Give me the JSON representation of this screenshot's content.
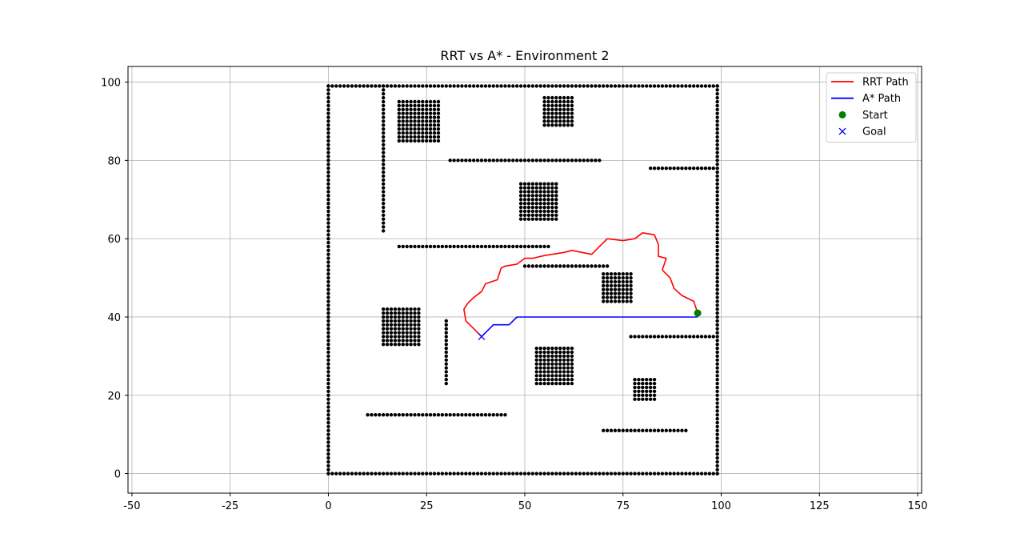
{
  "chart_data": {
    "type": "line",
    "title": "RRT vs A* - Environment 2",
    "xlabel": "",
    "ylabel": "",
    "xlim": [
      -51,
      151
    ],
    "ylim": [
      -5,
      104
    ],
    "grid": true,
    "legend_position": "top-right",
    "x_ticks": [
      -50,
      -25,
      0,
      25,
      50,
      75,
      100,
      125,
      150
    ],
    "y_ticks": [
      0,
      20,
      40,
      60,
      80,
      100
    ],
    "colors": {
      "rrt": "#ff0000",
      "astar": "#0000ff",
      "start": "#008000",
      "goal": "#0000ff",
      "obstacle": "#000000",
      "grid": "#b0b0b0"
    },
    "series": [
      {
        "name": "RRT Path",
        "kind": "line",
        "color": "#ff0000",
        "points": [
          [
            94,
            41
          ],
          [
            93,
            44
          ],
          [
            90,
            45.5
          ],
          [
            88,
            47.3
          ],
          [
            87,
            50
          ],
          [
            85,
            52
          ],
          [
            86,
            55
          ],
          [
            84,
            55.5
          ],
          [
            84,
            58.5
          ],
          [
            83,
            61
          ],
          [
            80,
            61.5
          ],
          [
            78,
            60
          ],
          [
            75,
            59.5
          ],
          [
            71,
            60
          ],
          [
            69,
            58
          ],
          [
            67,
            56
          ],
          [
            62,
            57
          ],
          [
            60,
            56.5
          ],
          [
            55,
            55.7
          ],
          [
            52,
            55
          ],
          [
            50,
            55
          ],
          [
            48,
            53.5
          ],
          [
            45,
            53
          ],
          [
            44,
            52.5
          ],
          [
            43,
            49.5
          ],
          [
            40,
            48.5
          ],
          [
            39,
            46.5
          ],
          [
            37,
            45
          ],
          [
            35.5,
            43.5
          ],
          [
            34.5,
            42
          ],
          [
            35,
            39
          ],
          [
            37,
            37
          ],
          [
            39,
            35
          ]
        ]
      },
      {
        "name": "A* Path",
        "kind": "line",
        "color": "#0000ff",
        "points": [
          [
            94,
            40
          ],
          [
            48,
            40
          ],
          [
            46,
            38
          ],
          [
            42,
            38
          ],
          [
            39,
            35
          ]
        ]
      },
      {
        "name": "Start",
        "kind": "point",
        "marker": "circle",
        "color": "#008000",
        "points": [
          [
            94,
            41
          ]
        ]
      },
      {
        "name": "Goal",
        "kind": "point",
        "marker": "x",
        "color": "#0000ff",
        "points": [
          [
            39,
            35
          ]
        ]
      }
    ],
    "obstacles": {
      "color": "#000000",
      "lines": [
        {
          "from": [
            0,
            0
          ],
          "to": [
            99,
            0
          ]
        },
        {
          "from": [
            0,
            99
          ],
          "to": [
            99,
            99
          ]
        },
        {
          "from": [
            0,
            0
          ],
          "to": [
            0,
            99
          ]
        },
        {
          "from": [
            99,
            0
          ],
          "to": [
            99,
            99
          ]
        },
        {
          "from": [
            14,
            62
          ],
          "to": [
            14,
            99
          ]
        },
        {
          "from": [
            31,
            80
          ],
          "to": [
            69,
            80
          ]
        },
        {
          "from": [
            82,
            78
          ],
          "to": [
            98,
            78
          ]
        },
        {
          "from": [
            18,
            58
          ],
          "to": [
            56,
            58
          ]
        },
        {
          "from": [
            50,
            53
          ],
          "to": [
            71,
            53
          ]
        },
        {
          "from": [
            77,
            35
          ],
          "to": [
            98,
            35
          ]
        },
        {
          "from": [
            30,
            23
          ],
          "to": [
            30,
            39
          ]
        },
        {
          "from": [
            10,
            15
          ],
          "to": [
            45,
            15
          ]
        },
        {
          "from": [
            70,
            11
          ],
          "to": [
            91,
            11
          ]
        }
      ],
      "blocks": [
        {
          "x": [
            18,
            28
          ],
          "y": [
            85,
            95
          ]
        },
        {
          "x": [
            55,
            62
          ],
          "y": [
            89,
            96
          ]
        },
        {
          "x": [
            49,
            58
          ],
          "y": [
            65,
            74
          ]
        },
        {
          "x": [
            70,
            77
          ],
          "y": [
            44,
            51
          ]
        },
        {
          "x": [
            14,
            23
          ],
          "y": [
            33,
            42
          ]
        },
        {
          "x": [
            53,
            62
          ],
          "y": [
            23,
            32
          ]
        },
        {
          "x": [
            78,
            83
          ],
          "y": [
            19,
            24
          ]
        }
      ]
    }
  }
}
